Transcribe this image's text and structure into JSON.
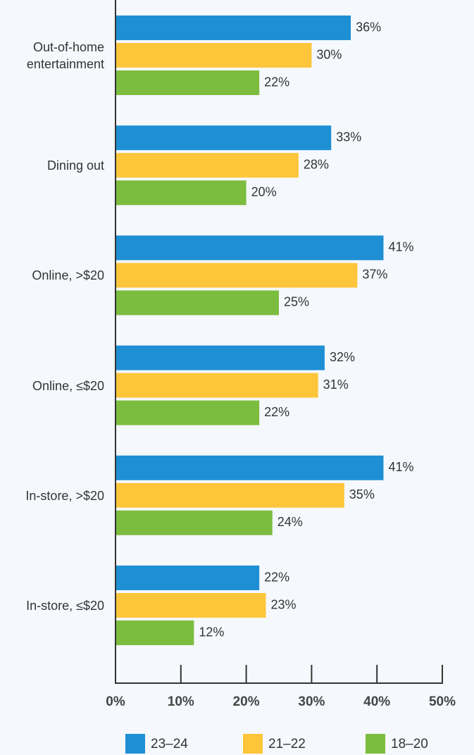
{
  "chart_data": {
    "type": "bar",
    "orientation": "horizontal",
    "categories": [
      "Out-of-home entertainment",
      "Dining out",
      "Online, >$20",
      "Online, ≤$20",
      "In-store, >$20",
      "In-store, ≤$20"
    ],
    "series": [
      {
        "name": "23–24",
        "color": "#1f8fd4",
        "values": [
          36,
          33,
          41,
          32,
          41,
          22
        ],
        "value_labels": [
          "36%",
          "33%",
          "41%",
          "32%",
          "41%",
          "22%"
        ]
      },
      {
        "name": "21–22",
        "color": "#fdc53a",
        "values": [
          30,
          28,
          37,
          31,
          35,
          23
        ],
        "value_labels": [
          "30%",
          "28%",
          "37%",
          "31%",
          "35%",
          "23%"
        ]
      },
      {
        "name": "18–20",
        "color": "#7cbd3f",
        "values": [
          22,
          20,
          25,
          22,
          24,
          12
        ],
        "value_labels": [
          "22%",
          "20%",
          "25%",
          "22%",
          "24%",
          "12%"
        ]
      }
    ],
    "xlim": [
      0,
      50
    ],
    "xticks": [
      {
        "value": 0,
        "label": "0%"
      },
      {
        "value": 10,
        "label": "10%"
      },
      {
        "value": 20,
        "label": "20%"
      },
      {
        "value": 30,
        "label": "30%"
      },
      {
        "value": 40,
        "label": "40%"
      },
      {
        "value": 50,
        "label": "50%"
      }
    ],
    "legend": "bottom"
  }
}
